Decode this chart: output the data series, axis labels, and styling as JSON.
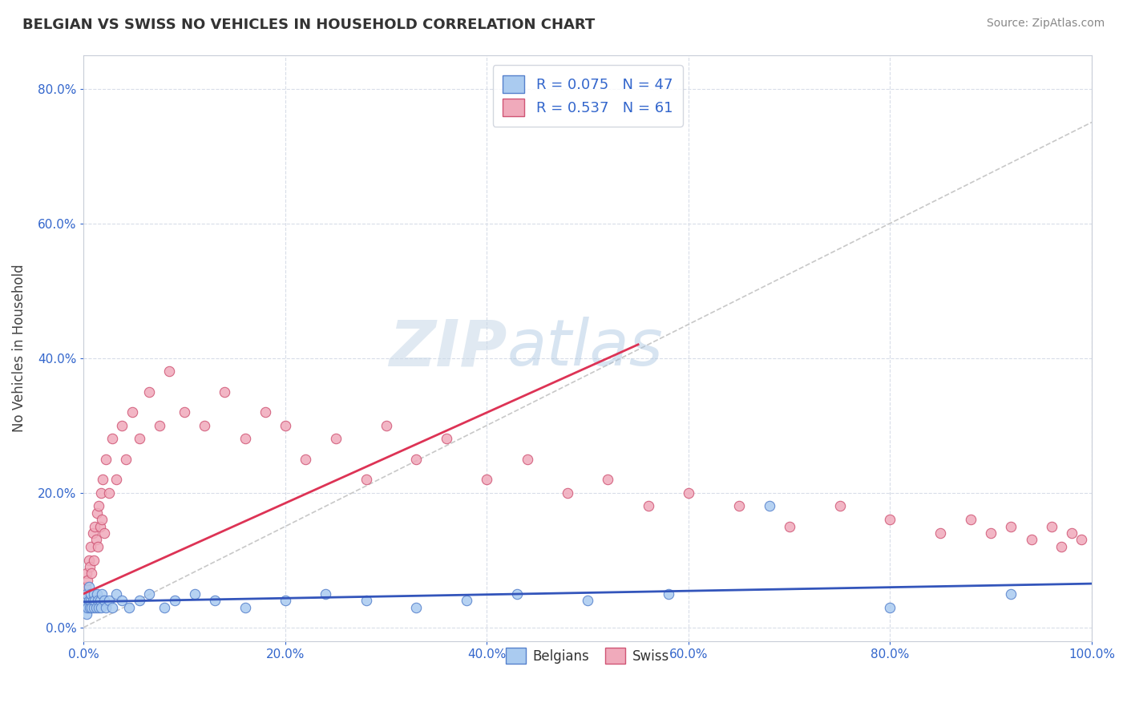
{
  "title": "BELGIAN VS SWISS NO VEHICLES IN HOUSEHOLD CORRELATION CHART",
  "source": "Source: ZipAtlas.com",
  "ylabel": "No Vehicles in Household",
  "xlim": [
    0,
    1.0
  ],
  "ylim": [
    -0.02,
    0.85
  ],
  "xticks": [
    0.0,
    0.2,
    0.4,
    0.6,
    0.8,
    1.0
  ],
  "yticks": [
    0.0,
    0.2,
    0.4,
    0.6,
    0.8
  ],
  "xtick_labels": [
    "0.0%",
    "20.0%",
    "40.0%",
    "60.0%",
    "80.0%",
    "100.0%"
  ],
  "ytick_labels": [
    "0.0%",
    "20.0%",
    "40.0%",
    "60.0%",
    "80.0%"
  ],
  "belgian_color": "#aacbf0",
  "swiss_color": "#f0aabb",
  "belgian_edge": "#5580cc",
  "swiss_edge": "#d05575",
  "trend_belgian_color": "#3355bb",
  "trend_swiss_color": "#dd3355",
  "ref_line_color": "#c8c8c8",
  "legend_text_color": "#3366cc",
  "belgians_R": 0.075,
  "belgians_N": 47,
  "swiss_R": 0.537,
  "swiss_N": 61,
  "watermark": "ZIPatlas",
  "background_color": "#ffffff",
  "grid_color": "#d8dde8",
  "belgian_x": [
    0.001,
    0.002,
    0.003,
    0.003,
    0.004,
    0.005,
    0.005,
    0.006,
    0.007,
    0.007,
    0.008,
    0.009,
    0.01,
    0.01,
    0.011,
    0.012,
    0.013,
    0.014,
    0.015,
    0.016,
    0.017,
    0.018,
    0.02,
    0.022,
    0.025,
    0.028,
    0.032,
    0.038,
    0.045,
    0.055,
    0.065,
    0.08,
    0.09,
    0.11,
    0.13,
    0.16,
    0.2,
    0.24,
    0.28,
    0.33,
    0.38,
    0.43,
    0.5,
    0.58,
    0.68,
    0.8,
    0.92
  ],
  "belgian_y": [
    0.03,
    0.04,
    0.02,
    0.05,
    0.03,
    0.04,
    0.06,
    0.03,
    0.04,
    0.05,
    0.03,
    0.04,
    0.03,
    0.05,
    0.04,
    0.03,
    0.05,
    0.04,
    0.03,
    0.04,
    0.03,
    0.05,
    0.04,
    0.03,
    0.04,
    0.03,
    0.05,
    0.04,
    0.03,
    0.04,
    0.05,
    0.03,
    0.04,
    0.05,
    0.04,
    0.03,
    0.04,
    0.05,
    0.04,
    0.03,
    0.04,
    0.05,
    0.04,
    0.05,
    0.18,
    0.03,
    0.05
  ],
  "swiss_x": [
    0.002,
    0.003,
    0.004,
    0.005,
    0.006,
    0.007,
    0.008,
    0.009,
    0.01,
    0.011,
    0.012,
    0.013,
    0.014,
    0.015,
    0.016,
    0.017,
    0.018,
    0.019,
    0.02,
    0.022,
    0.025,
    0.028,
    0.032,
    0.038,
    0.042,
    0.048,
    0.055,
    0.065,
    0.075,
    0.085,
    0.1,
    0.12,
    0.14,
    0.16,
    0.18,
    0.2,
    0.22,
    0.25,
    0.28,
    0.3,
    0.33,
    0.36,
    0.4,
    0.44,
    0.48,
    0.52,
    0.56,
    0.6,
    0.65,
    0.7,
    0.75,
    0.8,
    0.85,
    0.88,
    0.9,
    0.92,
    0.94,
    0.96,
    0.97,
    0.98,
    0.99
  ],
  "swiss_y": [
    0.06,
    0.08,
    0.07,
    0.1,
    0.09,
    0.12,
    0.08,
    0.14,
    0.1,
    0.15,
    0.13,
    0.17,
    0.12,
    0.18,
    0.15,
    0.2,
    0.16,
    0.22,
    0.14,
    0.25,
    0.2,
    0.28,
    0.22,
    0.3,
    0.25,
    0.32,
    0.28,
    0.35,
    0.3,
    0.38,
    0.32,
    0.3,
    0.35,
    0.28,
    0.32,
    0.3,
    0.25,
    0.28,
    0.22,
    0.3,
    0.25,
    0.28,
    0.22,
    0.25,
    0.2,
    0.22,
    0.18,
    0.2,
    0.18,
    0.15,
    0.18,
    0.16,
    0.14,
    0.16,
    0.14,
    0.15,
    0.13,
    0.15,
    0.12,
    0.14,
    0.13
  ],
  "belgian_trend_x": [
    0.0,
    1.0
  ],
  "belgian_trend_y": [
    0.038,
    0.065
  ],
  "swiss_trend_x": [
    0.0,
    0.55
  ],
  "swiss_trend_y": [
    0.05,
    0.42
  ],
  "ref_line_x": [
    0.0,
    1.0
  ],
  "ref_line_y": [
    0.0,
    0.75
  ]
}
